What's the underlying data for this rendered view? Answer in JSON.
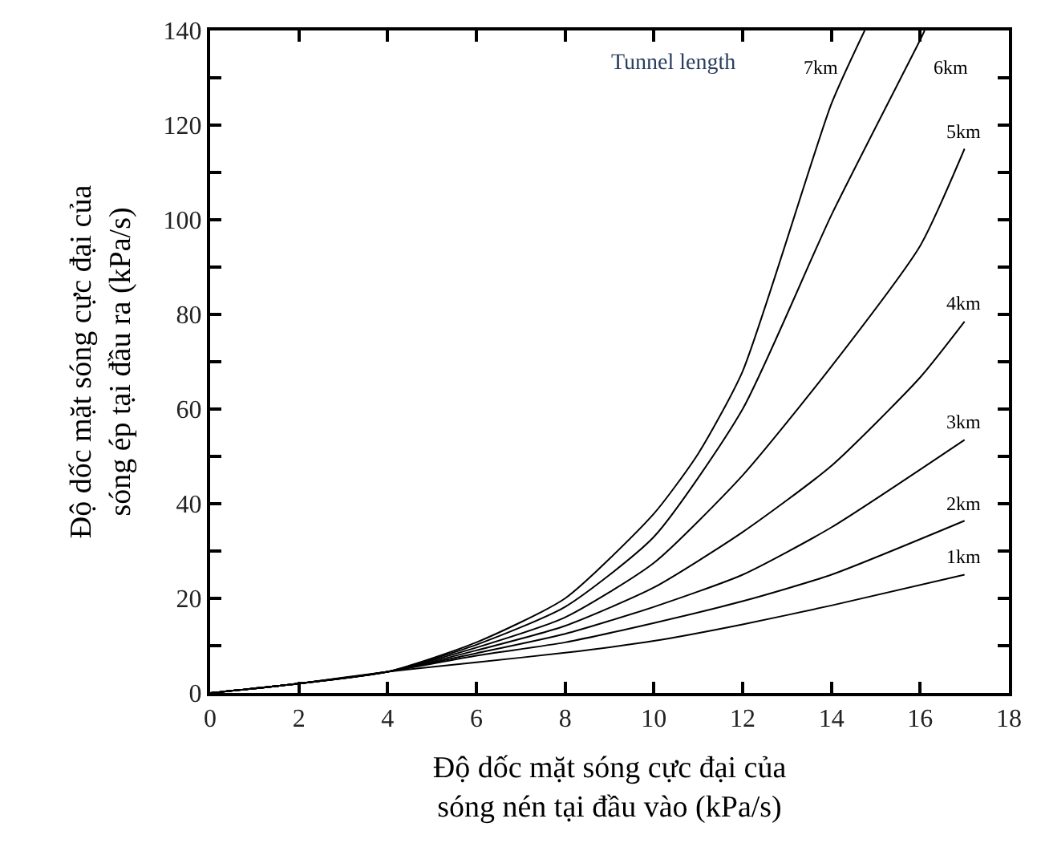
{
  "chart_data": {
    "type": "line",
    "xlabel": "Độ dốc mặt sóng cực đại của\nsóng nén tại đầu vào (kPa/s)",
    "ylabel": "Độ dốc mặt sóng cực đại của\nsóng ép tại đầu ra (kPa/s)",
    "annotations": [
      "Tunnel length"
    ],
    "x": [
      0,
      2,
      4,
      6,
      8,
      10,
      12,
      14,
      17
    ],
    "series": [
      {
        "name": "1km",
        "color": "#000000",
        "values": [
          0,
          2,
          4.5,
          6.5,
          8.5,
          11,
          14.5,
          18.5,
          25
        ]
      },
      {
        "name": "2km",
        "color": "#000000",
        "values": [
          0,
          2,
          4.5,
          7.9,
          10.7,
          14.8,
          19.4,
          25,
          36.4
        ]
      },
      {
        "name": "3km",
        "color": "#000000",
        "values": [
          0,
          2,
          4.5,
          8.4,
          12.5,
          18.2,
          25,
          35,
          53.5
        ]
      },
      {
        "name": "4km",
        "color": "#000000",
        "x": [
          0,
          2,
          4,
          6,
          8,
          10,
          12,
          14,
          16,
          17
        ],
        "values": [
          0,
          2,
          4.5,
          9,
          14.2,
          22.3,
          34,
          48,
          66.7,
          78.5
        ]
      },
      {
        "name": "5km",
        "color": "#000000",
        "x": [
          0,
          2,
          4,
          6,
          8,
          10,
          12,
          14,
          16,
          17
        ],
        "values": [
          0,
          2,
          4.5,
          9.6,
          16,
          27.5,
          46,
          69,
          94.5,
          115
        ]
      },
      {
        "name": "6km",
        "color": "#000000",
        "x": [
          0,
          2,
          4,
          6,
          8,
          10,
          12,
          14,
          16,
          16.1
        ],
        "values": [
          0,
          2,
          4.5,
          10.2,
          18.2,
          33,
          60,
          101,
          138,
          140
        ]
      },
      {
        "name": "7km",
        "color": "#000000",
        "x": [
          0,
          2,
          4,
          6,
          8,
          10,
          11,
          12,
          14,
          14.75
        ],
        "values": [
          0,
          2,
          4.5,
          10.7,
          20,
          37.9,
          50.6,
          68,
          124.5,
          140
        ]
      }
    ],
    "xlim": [
      0,
      18
    ],
    "ylim": [
      0,
      140
    ],
    "xticks": [
      0,
      2,
      4,
      6,
      8,
      10,
      12,
      14,
      16,
      18
    ],
    "yticks": [
      0,
      {
        "value": 10,
        "label": null
      },
      20,
      {
        "value": 30,
        "label": null
      },
      40,
      {
        "value": 50,
        "label": null
      },
      60,
      {
        "value": 70,
        "label": null
      },
      80,
      {
        "value": 90,
        "label": null
      },
      100,
      {
        "value": 110,
        "label": null
      },
      120,
      {
        "value": 130,
        "label": null
      },
      140
    ],
    "legend": "right",
    "marker": "none",
    "line_style": "solid"
  }
}
